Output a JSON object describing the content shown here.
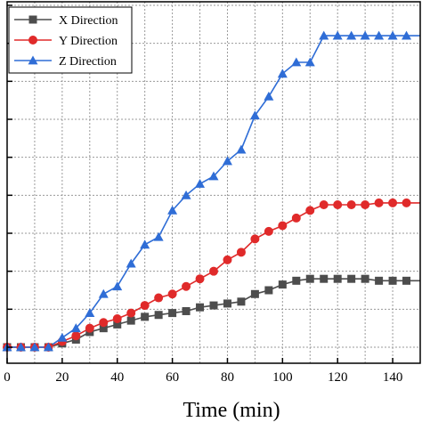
{
  "chart_data": {
    "type": "line",
    "xlabel": "Time (min)",
    "ylabel": "",
    "xlim": [
      0,
      150
    ],
    "ylim": [
      0,
      9
    ],
    "x_ticks": [
      0,
      20,
      40,
      60,
      80,
      100,
      120,
      140
    ],
    "x_tick_labels": [
      "0",
      "20",
      "40",
      "60",
      "80",
      "100",
      "120",
      "140"
    ],
    "grid": true,
    "legend_position": "top-left",
    "series": [
      {
        "name": "X Direction",
        "color": "#4d4d4d",
        "marker": "square",
        "x": [
          0,
          5,
          10,
          15,
          20,
          25,
          30,
          35,
          40,
          45,
          50,
          55,
          60,
          65,
          70,
          75,
          80,
          85,
          90,
          95,
          100,
          105,
          110,
          115,
          120,
          125,
          130,
          135,
          140,
          145,
          150
        ],
        "y": [
          0.0,
          0.0,
          0.0,
          0.0,
          0.1,
          0.2,
          0.4,
          0.5,
          0.6,
          0.7,
          0.8,
          0.85,
          0.9,
          0.95,
          1.05,
          1.1,
          1.15,
          1.2,
          1.4,
          1.5,
          1.65,
          1.75,
          1.8,
          1.8,
          1.8,
          1.8,
          1.8,
          1.75,
          1.75,
          1.75,
          1.75
        ]
      },
      {
        "name": "Y Direction",
        "color": "#e02a2a",
        "marker": "circle",
        "x": [
          0,
          5,
          10,
          15,
          20,
          25,
          30,
          35,
          40,
          45,
          50,
          55,
          60,
          65,
          70,
          75,
          80,
          85,
          90,
          95,
          100,
          105,
          110,
          115,
          120,
          125,
          130,
          135,
          140,
          145,
          150
        ],
        "y": [
          0.0,
          0.0,
          0.0,
          0.0,
          0.15,
          0.3,
          0.5,
          0.65,
          0.75,
          0.9,
          1.1,
          1.3,
          1.4,
          1.6,
          1.8,
          2.0,
          2.3,
          2.5,
          2.85,
          3.05,
          3.2,
          3.4,
          3.6,
          3.75,
          3.75,
          3.75,
          3.75,
          3.8,
          3.8,
          3.8,
          3.8
        ]
      },
      {
        "name": "Z Direction",
        "color": "#2f6dd6",
        "marker": "triangle",
        "x": [
          0,
          5,
          10,
          15,
          20,
          25,
          30,
          35,
          40,
          45,
          50,
          55,
          60,
          65,
          70,
          75,
          80,
          85,
          90,
          95,
          100,
          105,
          110,
          115,
          120,
          125,
          130,
          135,
          140,
          145,
          150
        ],
        "y": [
          0.0,
          0.0,
          0.0,
          0.0,
          0.25,
          0.5,
          0.9,
          1.4,
          1.6,
          2.2,
          2.7,
          2.9,
          3.6,
          4.0,
          4.3,
          4.5,
          4.9,
          5.2,
          6.1,
          6.6,
          7.2,
          7.5,
          7.5,
          8.2,
          8.2,
          8.2,
          8.2,
          8.2,
          8.2,
          8.2,
          8.2
        ]
      }
    ]
  }
}
